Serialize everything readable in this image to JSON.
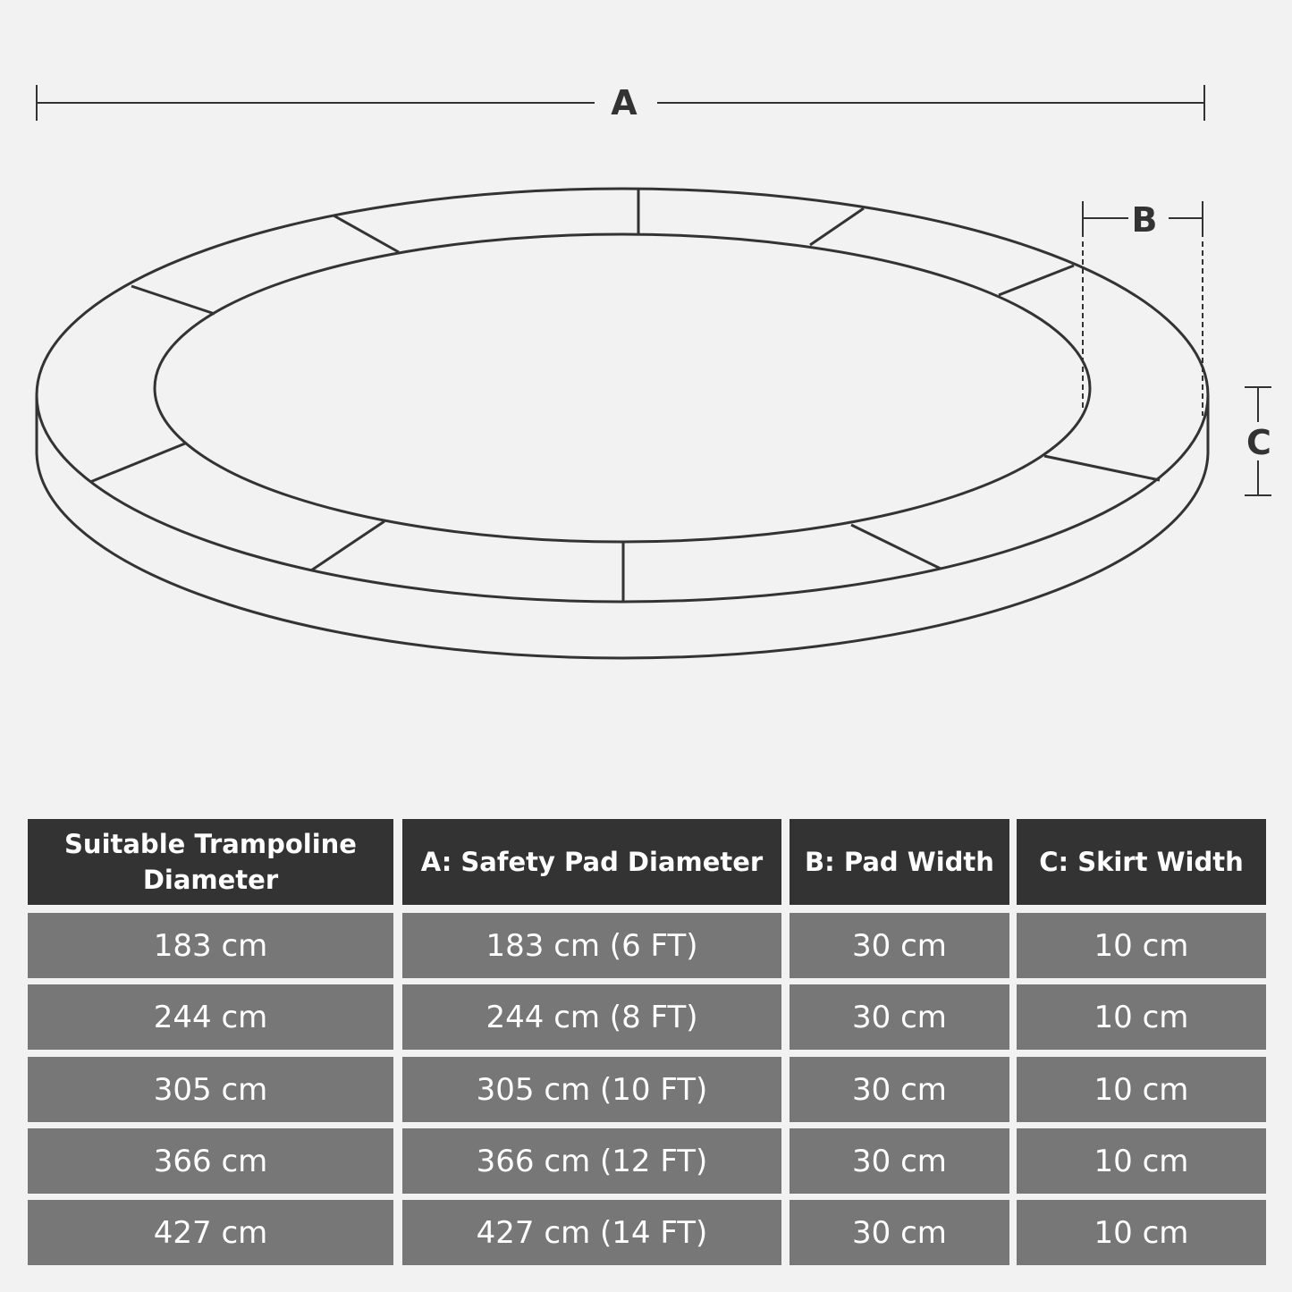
{
  "diagram": {
    "labels": {
      "a": "A",
      "b": "B",
      "c": "C"
    },
    "line_color": "#333333",
    "background": "#f2f2f2"
  },
  "table": {
    "header_color": "#333333",
    "row_color": "#777777",
    "headers": [
      "Suitable Trampoline Diameter",
      "A: Safety Pad Diameter",
      "B: Pad Width",
      "C: Skirt Width"
    ],
    "rows": [
      [
        "183 cm",
        "183 cm (6 FT)",
        "30 cm",
        "10 cm"
      ],
      [
        "244 cm",
        "244 cm (8 FT)",
        "30 cm",
        "10 cm"
      ],
      [
        "305 cm",
        "305 cm (10 FT)",
        "30 cm",
        "10 cm"
      ],
      [
        "366 cm",
        "366 cm (12 FT)",
        "30 cm",
        "10 cm"
      ],
      [
        "427 cm",
        "427 cm (14 FT)",
        "30 cm",
        "10 cm"
      ]
    ]
  }
}
